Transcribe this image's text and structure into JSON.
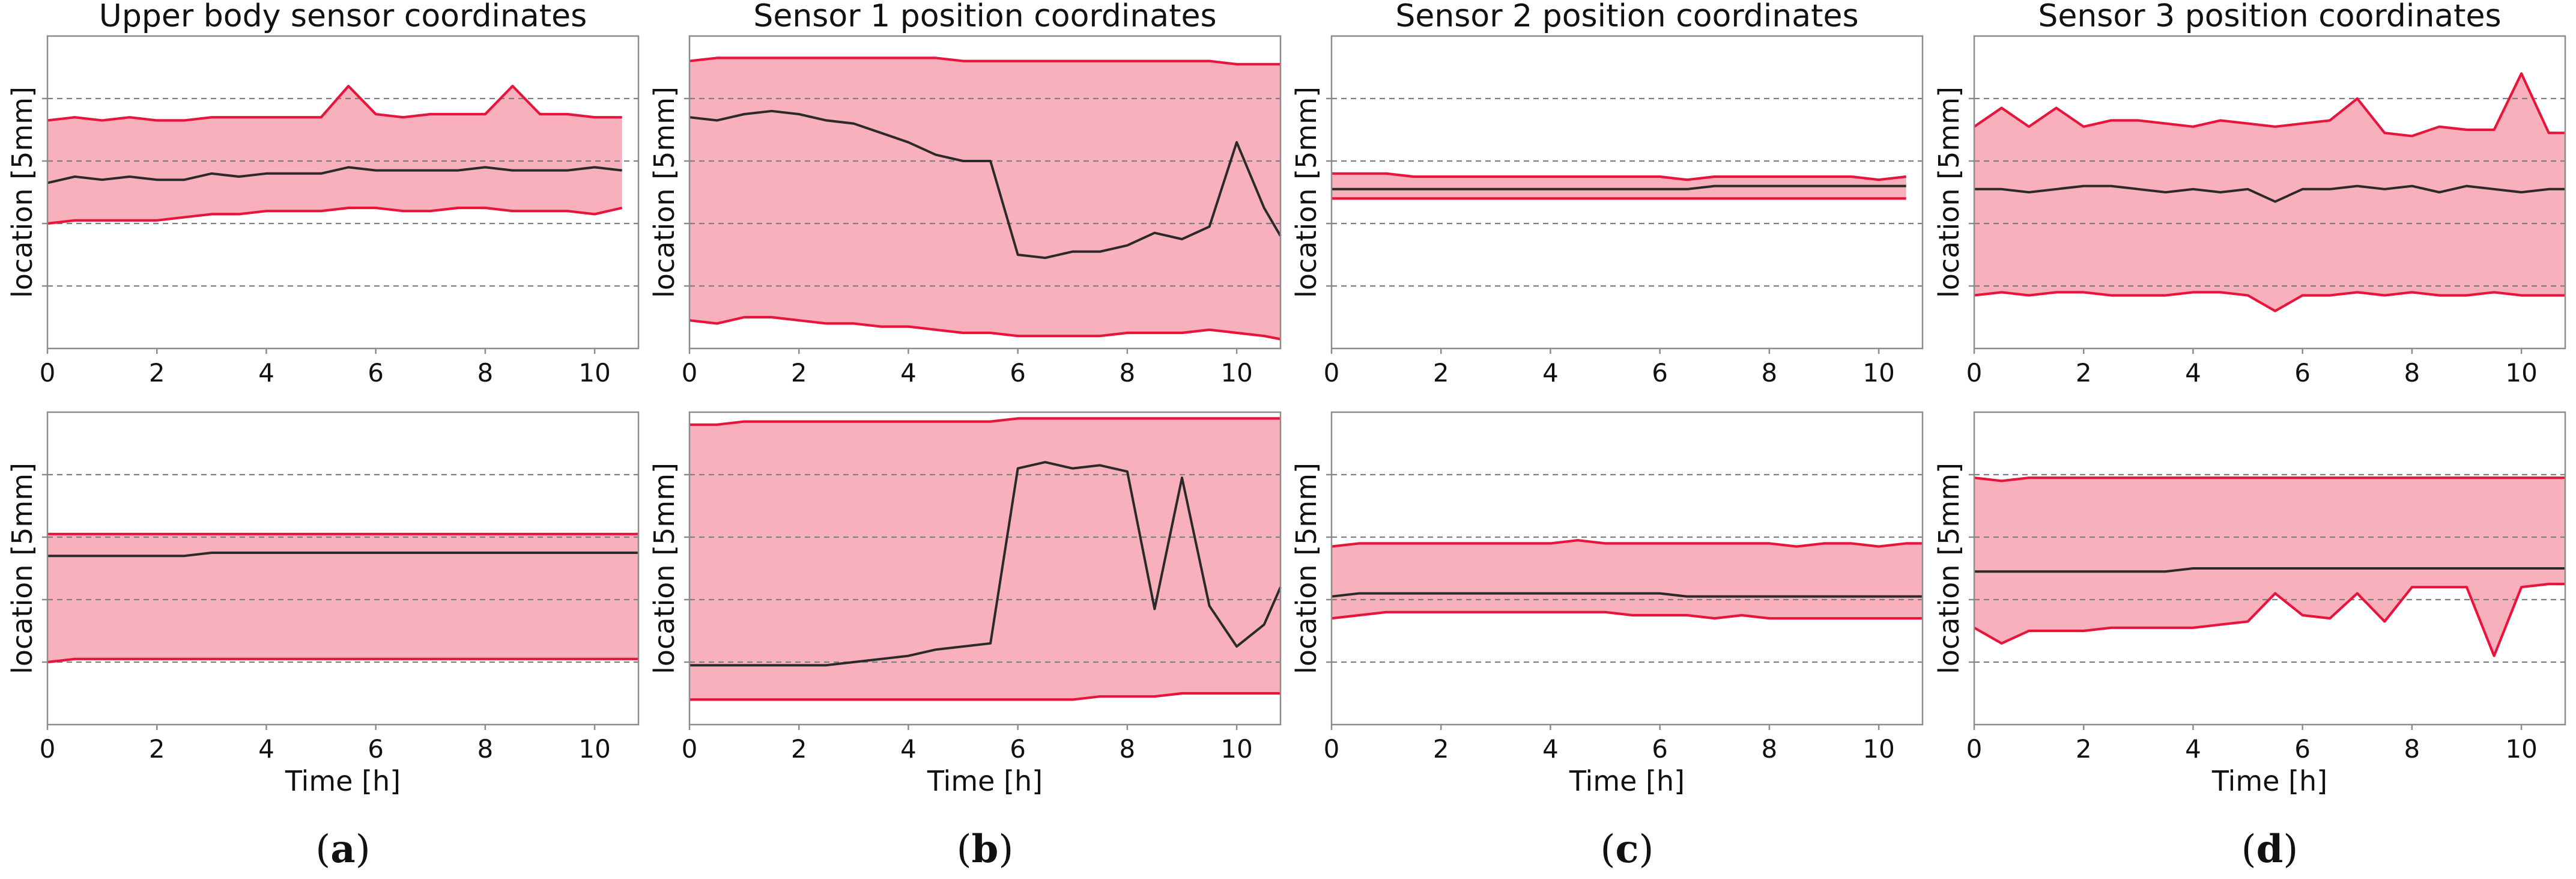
{
  "chart_data": [
    {
      "type": "area",
      "panel": "a",
      "row": 1,
      "title": "Upper body sensor coordinates",
      "xlabel": "",
      "ylabel": "location [5mm]",
      "xlim": [
        0,
        10.8
      ],
      "ylim": [
        0,
        100
      ],
      "xticks": [
        0,
        2,
        4,
        6,
        8,
        10
      ],
      "grid_y": [
        20,
        40,
        60,
        80
      ],
      "x": [
        0,
        0.5,
        1,
        1.5,
        2,
        2.5,
        3,
        3.5,
        4,
        4.5,
        5,
        5.5,
        6,
        6.5,
        7,
        7.5,
        8,
        8.5,
        9,
        9.5,
        10,
        10.5
      ],
      "series": [
        {
          "name": "upper",
          "values": [
            73,
            74,
            73,
            74,
            73,
            73,
            74,
            74,
            74,
            74,
            74,
            84,
            75,
            74,
            75,
            75,
            75,
            84,
            75,
            75,
            74,
            74
          ]
        },
        {
          "name": "mean",
          "values": [
            53,
            55,
            54,
            55,
            54,
            54,
            56,
            55,
            56,
            56,
            56,
            58,
            57,
            57,
            57,
            57,
            58,
            57,
            57,
            57,
            58,
            57
          ]
        },
        {
          "name": "lower",
          "values": [
            40,
            41,
            41,
            41,
            41,
            42,
            43,
            43,
            44,
            44,
            44,
            45,
            45,
            44,
            44,
            45,
            45,
            44,
            44,
            44,
            43,
            45
          ]
        }
      ]
    },
    {
      "type": "area",
      "panel": "b",
      "row": 1,
      "title": "Sensor 1 position coordinates",
      "xlabel": "",
      "ylabel": "location [5mm]",
      "xlim": [
        0,
        10.8
      ],
      "ylim": [
        0,
        100
      ],
      "xticks": [
        0,
        2,
        4,
        6,
        8,
        10
      ],
      "grid_y": [
        20,
        40,
        60,
        80
      ],
      "x": [
        0,
        0.5,
        1,
        1.5,
        2,
        2.5,
        3,
        3.5,
        4,
        4.5,
        5,
        5.5,
        6,
        6.5,
        7,
        7.5,
        8,
        8.5,
        9,
        9.5,
        10,
        10.5,
        10.8
      ],
      "series": [
        {
          "name": "upper",
          "values": [
            92,
            93,
            93,
            93,
            93,
            93,
            93,
            93,
            93,
            93,
            92,
            92,
            92,
            92,
            92,
            92,
            92,
            92,
            92,
            92,
            91,
            91,
            91
          ]
        },
        {
          "name": "mean",
          "values": [
            74,
            73,
            75,
            76,
            75,
            73,
            72,
            69,
            66,
            62,
            60,
            60,
            30,
            29,
            31,
            31,
            33,
            37,
            35,
            39,
            66,
            45,
            36
          ]
        },
        {
          "name": "lower",
          "values": [
            9,
            8,
            10,
            10,
            9,
            8,
            8,
            7,
            7,
            6,
            5,
            5,
            4,
            4,
            4,
            4,
            5,
            5,
            5,
            6,
            5,
            4,
            3
          ]
        }
      ]
    },
    {
      "type": "area",
      "panel": "c",
      "row": 1,
      "title": "Sensor 2 position coordinates",
      "xlabel": "",
      "ylabel": "location [5mm]",
      "xlim": [
        0,
        10.8
      ],
      "ylim": [
        0,
        100
      ],
      "xticks": [
        0,
        2,
        4,
        6,
        8,
        10
      ],
      "grid_y": [
        20,
        40,
        60,
        80
      ],
      "x": [
        0,
        0.5,
        1,
        1.5,
        2,
        2.5,
        3,
        3.5,
        4,
        4.5,
        5,
        5.5,
        6,
        6.5,
        7,
        7.5,
        8,
        8.5,
        9,
        9.5,
        10,
        10.5
      ],
      "series": [
        {
          "name": "upper",
          "values": [
            56,
            56,
            56,
            55,
            55,
            55,
            55,
            55,
            55,
            55,
            55,
            55,
            55,
            54,
            55,
            55,
            55,
            55,
            55,
            55,
            54,
            55
          ]
        },
        {
          "name": "mean",
          "values": [
            51,
            51,
            51,
            51,
            51,
            51,
            51,
            51,
            51,
            51,
            51,
            51,
            51,
            51,
            52,
            52,
            52,
            52,
            52,
            52,
            52,
            52
          ]
        },
        {
          "name": "lower",
          "values": [
            48,
            48,
            48,
            48,
            48,
            48,
            48,
            48,
            48,
            48,
            48,
            48,
            48,
            48,
            48,
            48,
            48,
            48,
            48,
            48,
            48,
            48
          ]
        }
      ]
    },
    {
      "type": "area",
      "panel": "d",
      "row": 1,
      "title": "Sensor 3 position coordinates",
      "xlabel": "",
      "ylabel": "location [5mm]",
      "xlim": [
        0,
        10.8
      ],
      "ylim": [
        0,
        100
      ],
      "xticks": [
        0,
        2,
        4,
        6,
        8,
        10
      ],
      "grid_y": [
        20,
        40,
        60,
        80
      ],
      "x": [
        0,
        0.5,
        1,
        1.5,
        2,
        2.5,
        3,
        3.5,
        4,
        4.5,
        5,
        5.5,
        6,
        6.5,
        7,
        7.5,
        8,
        8.5,
        9,
        9.5,
        10,
        10.5,
        10.8
      ],
      "series": [
        {
          "name": "upper",
          "values": [
            71,
            77,
            71,
            77,
            71,
            73,
            73,
            72,
            71,
            73,
            72,
            71,
            72,
            73,
            80,
            69,
            68,
            71,
            70,
            70,
            88,
            69,
            69
          ]
        },
        {
          "name": "mean",
          "values": [
            51,
            51,
            50,
            51,
            52,
            52,
            51,
            50,
            51,
            50,
            51,
            47,
            51,
            51,
            52,
            51,
            52,
            50,
            52,
            51,
            50,
            51,
            51
          ]
        },
        {
          "name": "lower",
          "values": [
            17,
            18,
            17,
            18,
            18,
            17,
            17,
            17,
            18,
            18,
            17,
            12,
            17,
            17,
            18,
            17,
            18,
            17,
            17,
            18,
            17,
            17,
            17
          ]
        }
      ]
    },
    {
      "type": "area",
      "panel": "a",
      "row": 2,
      "title": "",
      "xlabel": "Time [h]",
      "ylabel": "location [5mm]",
      "xlim": [
        0,
        10.8
      ],
      "ylim": [
        0,
        100
      ],
      "xticks": [
        0,
        2,
        4,
        6,
        8,
        10
      ],
      "grid_y": [
        20,
        40,
        60,
        80
      ],
      "x": [
        0,
        0.5,
        1,
        1.5,
        2,
        2.5,
        3,
        3.5,
        4,
        4.5,
        5,
        5.5,
        6,
        6.5,
        7,
        7.5,
        8,
        8.5,
        9,
        9.5,
        10,
        10.5,
        10.8
      ],
      "series": [
        {
          "name": "upper",
          "values": [
            61,
            61,
            61,
            61,
            61,
            61,
            61,
            61,
            61,
            61,
            61,
            61,
            61,
            61,
            61,
            61,
            61,
            61,
            61,
            61,
            61,
            61,
            61
          ]
        },
        {
          "name": "mean",
          "values": [
            54,
            54,
            54,
            54,
            54,
            54,
            55,
            55,
            55,
            55,
            55,
            55,
            55,
            55,
            55,
            55,
            55,
            55,
            55,
            55,
            55,
            55,
            55
          ]
        },
        {
          "name": "lower",
          "values": [
            20,
            21,
            21,
            21,
            21,
            21,
            21,
            21,
            21,
            21,
            21,
            21,
            21,
            21,
            21,
            21,
            21,
            21,
            21,
            21,
            21,
            21,
            21
          ]
        }
      ]
    },
    {
      "type": "area",
      "panel": "b",
      "row": 2,
      "title": "",
      "xlabel": "Time [h]",
      "ylabel": "location [5mm]",
      "xlim": [
        0,
        10.8
      ],
      "ylim": [
        0,
        100
      ],
      "xticks": [
        0,
        2,
        4,
        6,
        8,
        10
      ],
      "grid_y": [
        20,
        40,
        60,
        80
      ],
      "x": [
        0,
        0.5,
        1,
        1.5,
        2,
        2.5,
        3,
        3.5,
        4,
        4.5,
        5,
        5.5,
        6,
        6.5,
        7,
        7.5,
        8,
        8.5,
        9,
        9.5,
        10,
        10.5,
        10.8
      ],
      "series": [
        {
          "name": "upper",
          "values": [
            96,
            96,
            97,
            97,
            97,
            97,
            97,
            97,
            97,
            97,
            97,
            97,
            98,
            98,
            98,
            98,
            98,
            98,
            98,
            98,
            98,
            98,
            98
          ]
        },
        {
          "name": "mean",
          "values": [
            19,
            19,
            19,
            19,
            19,
            19,
            20,
            21,
            22,
            24,
            25,
            26,
            82,
            84,
            82,
            83,
            81,
            37,
            79,
            38,
            25,
            32,
            44
          ]
        },
        {
          "name": "lower",
          "values": [
            8,
            8,
            8,
            8,
            8,
            8,
            8,
            8,
            8,
            8,
            8,
            8,
            8,
            8,
            8,
            9,
            9,
            9,
            10,
            10,
            10,
            10,
            10
          ]
        }
      ]
    },
    {
      "type": "area",
      "panel": "c",
      "row": 2,
      "title": "",
      "xlabel": "Time [h]",
      "ylabel": "location [5mm]",
      "xlim": [
        0,
        10.8
      ],
      "ylim": [
        0,
        100
      ],
      "xticks": [
        0,
        2,
        4,
        6,
        8,
        10
      ],
      "grid_y": [
        20,
        40,
        60,
        80
      ],
      "x": [
        0,
        0.5,
        1,
        1.5,
        2,
        2.5,
        3,
        3.5,
        4,
        4.5,
        5,
        5.5,
        6,
        6.5,
        7,
        7.5,
        8,
        8.5,
        9,
        9.5,
        10,
        10.5,
        10.8
      ],
      "series": [
        {
          "name": "upper",
          "values": [
            57,
            58,
            58,
            58,
            58,
            58,
            58,
            58,
            58,
            59,
            58,
            58,
            58,
            58,
            58,
            58,
            58,
            57,
            58,
            58,
            57,
            58,
            58
          ]
        },
        {
          "name": "mean",
          "values": [
            41,
            42,
            42,
            42,
            42,
            42,
            42,
            42,
            42,
            42,
            42,
            42,
            42,
            41,
            41,
            41,
            41,
            41,
            41,
            41,
            41,
            41,
            41
          ]
        },
        {
          "name": "lower",
          "values": [
            34,
            35,
            36,
            36,
            36,
            36,
            36,
            36,
            36,
            36,
            36,
            35,
            35,
            35,
            34,
            35,
            34,
            34,
            34,
            34,
            34,
            34,
            34
          ]
        }
      ]
    },
    {
      "type": "area",
      "panel": "d",
      "row": 2,
      "title": "",
      "xlabel": "Time [h]",
      "ylabel": "location [5mm]",
      "xlim": [
        0,
        10.8
      ],
      "ylim": [
        0,
        100
      ],
      "xticks": [
        0,
        2,
        4,
        6,
        8,
        10
      ],
      "grid_y": [
        20,
        40,
        60,
        80
      ],
      "x": [
        0,
        0.5,
        1,
        1.5,
        2,
        2.5,
        3,
        3.5,
        4,
        4.5,
        5,
        5.5,
        6,
        6.5,
        7,
        7.5,
        8,
        8.5,
        9,
        9.5,
        10,
        10.5,
        10.8
      ],
      "series": [
        {
          "name": "upper",
          "values": [
            79,
            78,
            79,
            79,
            79,
            79,
            79,
            79,
            79,
            79,
            79,
            79,
            79,
            79,
            79,
            79,
            79,
            79,
            79,
            79,
            79,
            79,
            79
          ]
        },
        {
          "name": "mean",
          "values": [
            49,
            49,
            49,
            49,
            49,
            49,
            49,
            49,
            50,
            50,
            50,
            50,
            50,
            50,
            50,
            50,
            50,
            50,
            50,
            50,
            50,
            50,
            50
          ]
        },
        {
          "name": "lower",
          "values": [
            31,
            26,
            30,
            30,
            30,
            31,
            31,
            31,
            31,
            32,
            33,
            42,
            35,
            34,
            42,
            33,
            44,
            44,
            44,
            22,
            44,
            45,
            45
          ]
        }
      ]
    }
  ],
  "captions": [
    "(a)",
    "(b)",
    "(c)",
    "(d)"
  ]
}
